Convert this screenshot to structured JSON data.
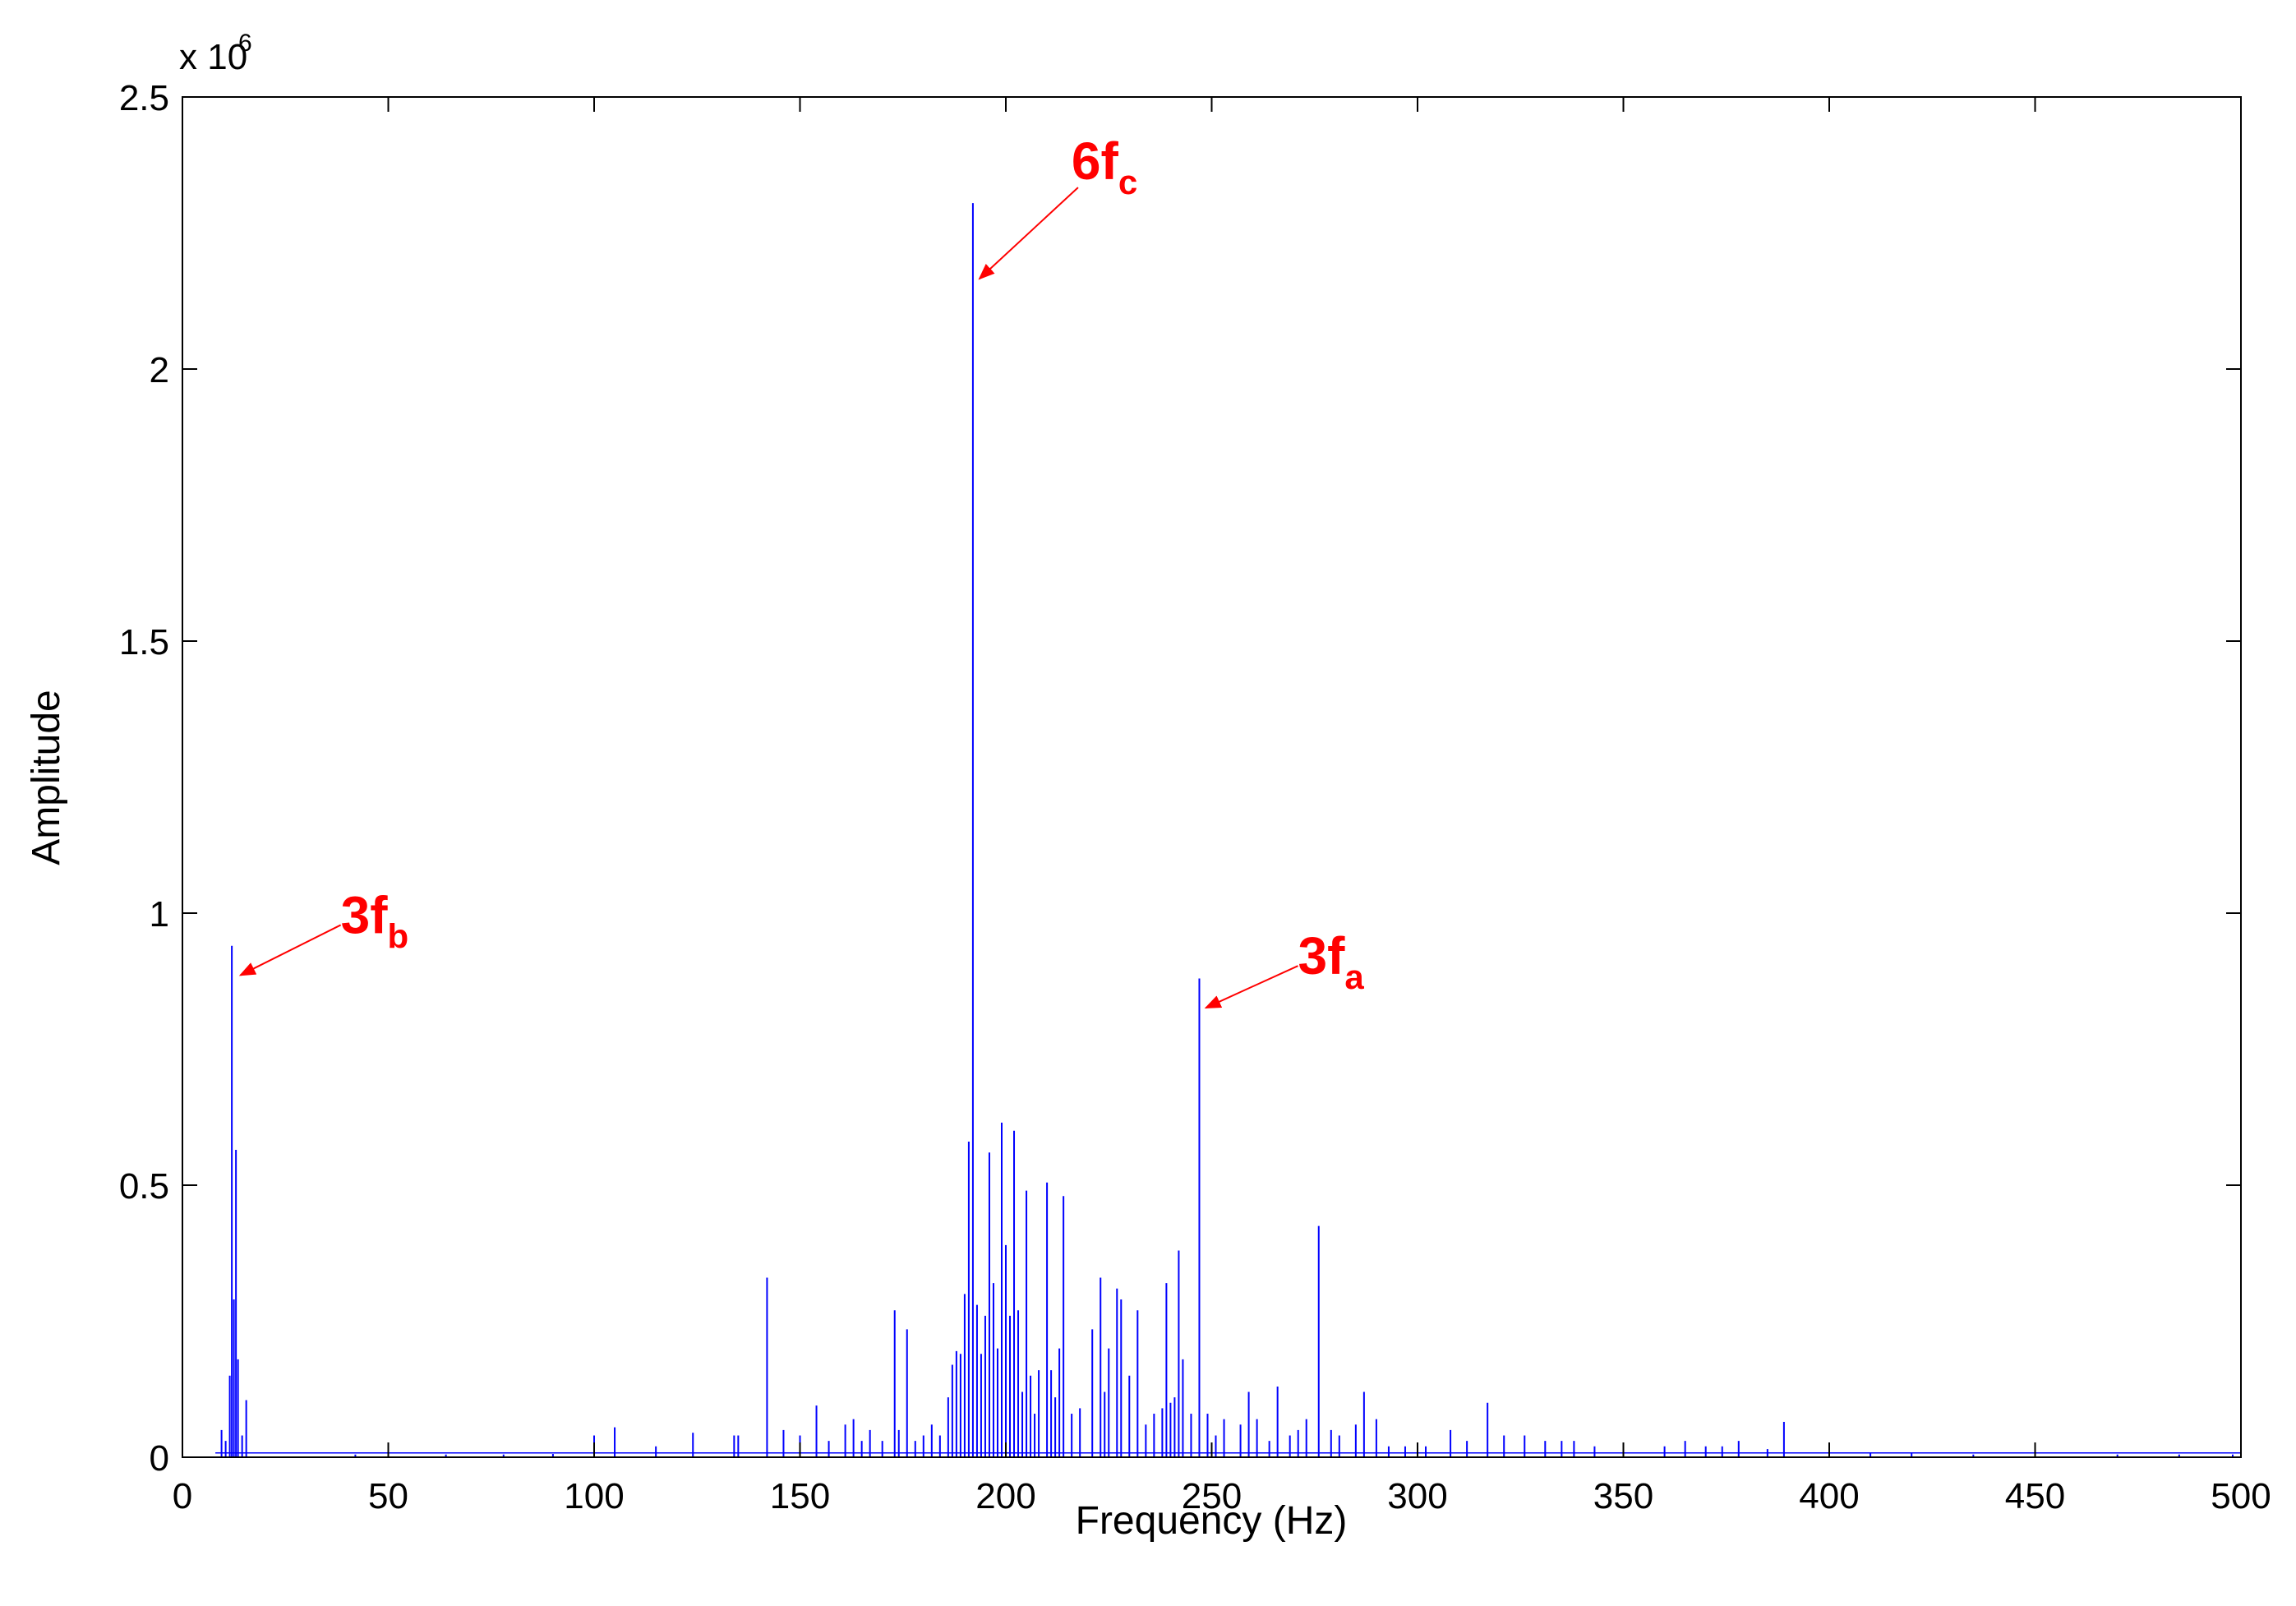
{
  "chart_data": {
    "type": "line",
    "title": "",
    "xlabel": "Frequency (Hz)",
    "ylabel": "Amplitude",
    "y_exponent_label": "x 10",
    "y_exponent_power": "6",
    "xlim": [
      0,
      500
    ],
    "ylim": [
      0,
      2500000
    ],
    "xticks": [
      0,
      50,
      100,
      150,
      200,
      250,
      300,
      350,
      400,
      450,
      500
    ],
    "xtick_labels": [
      "0",
      "50",
      "100",
      "150",
      "200",
      "250",
      "300",
      "350",
      "400",
      "450",
      "500"
    ],
    "yticks": [
      0,
      500000,
      1000000,
      1500000,
      2000000,
      2500000
    ],
    "ytick_labels": [
      "0",
      "0.5",
      "1",
      "1.5",
      "2",
      "2.5"
    ],
    "grid": false,
    "line_color": "#0000ff",
    "annotation_color": "#ff0000",
    "peaks": [
      {
        "x": 9.5,
        "y": 50000
      },
      {
        "x": 10.5,
        "y": 30000
      },
      {
        "x": 11.5,
        "y": 150000
      },
      {
        "x": 12.0,
        "y": 940000
      },
      {
        "x": 12.5,
        "y": 290000
      },
      {
        "x": 13.0,
        "y": 565000
      },
      {
        "x": 13.5,
        "y": 180000
      },
      {
        "x": 14.5,
        "y": 40000
      },
      {
        "x": 15.5,
        "y": 105000
      },
      {
        "x": 42,
        "y": 5000
      },
      {
        "x": 50,
        "y": 6000
      },
      {
        "x": 64,
        "y": 5000
      },
      {
        "x": 78,
        "y": 5000
      },
      {
        "x": 90,
        "y": 6000
      },
      {
        "x": 100,
        "y": 40000
      },
      {
        "x": 105,
        "y": 55000
      },
      {
        "x": 115,
        "y": 20000
      },
      {
        "x": 124,
        "y": 45000
      },
      {
        "x": 134,
        "y": 40000
      },
      {
        "x": 135,
        "y": 40000
      },
      {
        "x": 142,
        "y": 330000
      },
      {
        "x": 146,
        "y": 50000
      },
      {
        "x": 150,
        "y": 40000
      },
      {
        "x": 154,
        "y": 95000
      },
      {
        "x": 157,
        "y": 30000
      },
      {
        "x": 161,
        "y": 60000
      },
      {
        "x": 163,
        "y": 70000
      },
      {
        "x": 165,
        "y": 30000
      },
      {
        "x": 167,
        "y": 50000
      },
      {
        "x": 170,
        "y": 30000
      },
      {
        "x": 173,
        "y": 270000
      },
      {
        "x": 174,
        "y": 50000
      },
      {
        "x": 176,
        "y": 235000
      },
      {
        "x": 178,
        "y": 30000
      },
      {
        "x": 180,
        "y": 40000
      },
      {
        "x": 182,
        "y": 60000
      },
      {
        "x": 184,
        "y": 40000
      },
      {
        "x": 186,
        "y": 110000
      },
      {
        "x": 187,
        "y": 170000
      },
      {
        "x": 188,
        "y": 195000
      },
      {
        "x": 189,
        "y": 190000
      },
      {
        "x": 190,
        "y": 300000
      },
      {
        "x": 191,
        "y": 580000
      },
      {
        "x": 192,
        "y": 2305000
      },
      {
        "x": 193,
        "y": 280000
      },
      {
        "x": 194,
        "y": 190000
      },
      {
        "x": 195,
        "y": 260000
      },
      {
        "x": 196,
        "y": 560000
      },
      {
        "x": 197,
        "y": 320000
      },
      {
        "x": 198,
        "y": 200000
      },
      {
        "x": 199,
        "y": 615000
      },
      {
        "x": 200,
        "y": 390000
      },
      {
        "x": 201,
        "y": 260000
      },
      {
        "x": 202,
        "y": 600000
      },
      {
        "x": 203,
        "y": 270000
      },
      {
        "x": 204,
        "y": 120000
      },
      {
        "x": 205,
        "y": 490000
      },
      {
        "x": 206,
        "y": 150000
      },
      {
        "x": 207,
        "y": 80000
      },
      {
        "x": 208,
        "y": 160000
      },
      {
        "x": 210,
        "y": 505000
      },
      {
        "x": 211,
        "y": 160000
      },
      {
        "x": 212,
        "y": 110000
      },
      {
        "x": 213,
        "y": 200000
      },
      {
        "x": 214,
        "y": 480000
      },
      {
        "x": 216,
        "y": 80000
      },
      {
        "x": 218,
        "y": 90000
      },
      {
        "x": 221,
        "y": 235000
      },
      {
        "x": 223,
        "y": 330000
      },
      {
        "x": 224,
        "y": 120000
      },
      {
        "x": 225,
        "y": 200000
      },
      {
        "x": 227,
        "y": 310000
      },
      {
        "x": 228,
        "y": 290000
      },
      {
        "x": 230,
        "y": 150000
      },
      {
        "x": 232,
        "y": 270000
      },
      {
        "x": 234,
        "y": 60000
      },
      {
        "x": 236,
        "y": 80000
      },
      {
        "x": 238,
        "y": 90000
      },
      {
        "x": 239,
        "y": 320000
      },
      {
        "x": 240,
        "y": 100000
      },
      {
        "x": 241,
        "y": 110000
      },
      {
        "x": 242,
        "y": 380000
      },
      {
        "x": 243,
        "y": 180000
      },
      {
        "x": 245,
        "y": 80000
      },
      {
        "x": 247,
        "y": 880000
      },
      {
        "x": 249,
        "y": 80000
      },
      {
        "x": 251,
        "y": 40000
      },
      {
        "x": 253,
        "y": 70000
      },
      {
        "x": 257,
        "y": 60000
      },
      {
        "x": 259,
        "y": 120000
      },
      {
        "x": 261,
        "y": 70000
      },
      {
        "x": 264,
        "y": 30000
      },
      {
        "x": 266,
        "y": 130000
      },
      {
        "x": 269,
        "y": 40000
      },
      {
        "x": 271,
        "y": 50000
      },
      {
        "x": 273,
        "y": 70000
      },
      {
        "x": 276,
        "y": 425000
      },
      {
        "x": 279,
        "y": 50000
      },
      {
        "x": 281,
        "y": 40000
      },
      {
        "x": 285,
        "y": 60000
      },
      {
        "x": 287,
        "y": 120000
      },
      {
        "x": 290,
        "y": 70000
      },
      {
        "x": 293,
        "y": 20000
      },
      {
        "x": 297,
        "y": 20000
      },
      {
        "x": 302,
        "y": 20000
      },
      {
        "x": 308,
        "y": 50000
      },
      {
        "x": 312,
        "y": 30000
      },
      {
        "x": 317,
        "y": 100000
      },
      {
        "x": 321,
        "y": 40000
      },
      {
        "x": 326,
        "y": 40000
      },
      {
        "x": 331,
        "y": 30000
      },
      {
        "x": 335,
        "y": 30000
      },
      {
        "x": 338,
        "y": 30000
      },
      {
        "x": 343,
        "y": 20000
      },
      {
        "x": 350,
        "y": 10000
      },
      {
        "x": 360,
        "y": 20000
      },
      {
        "x": 365,
        "y": 30000
      },
      {
        "x": 370,
        "y": 20000
      },
      {
        "x": 374,
        "y": 20000
      },
      {
        "x": 378,
        "y": 30000
      },
      {
        "x": 385,
        "y": 15000
      },
      {
        "x": 389,
        "y": 65000
      },
      {
        "x": 400,
        "y": 15000
      },
      {
        "x": 410,
        "y": 8000
      },
      {
        "x": 420,
        "y": 8000
      },
      {
        "x": 435,
        "y": 5000
      },
      {
        "x": 450,
        "y": 6000
      },
      {
        "x": 470,
        "y": 5000
      },
      {
        "x": 485,
        "y": 5000
      },
      {
        "x": 498,
        "y": 5000
      }
    ],
    "annotations": [
      {
        "main": "6f",
        "sub": "c",
        "x": 192,
        "y": 2160000
      },
      {
        "main": "3f",
        "sub": "b",
        "x": 12.5,
        "y": 880000
      },
      {
        "main": "3f",
        "sub": "a",
        "x": 247,
        "y": 820000
      }
    ]
  }
}
